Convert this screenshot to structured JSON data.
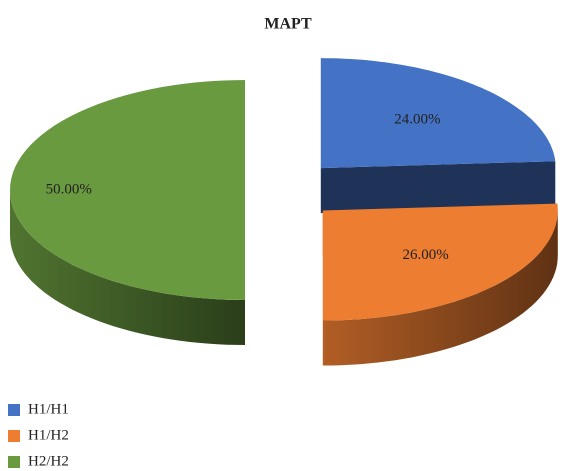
{
  "chart_data": {
    "type": "pie3d",
    "title": "МАРТ",
    "categories": [
      "H1/H1",
      "H1/H2",
      "H2/H2"
    ],
    "values": [
      24,
      26,
      50
    ],
    "value_labels": [
      "24.00%",
      "26.00%",
      "50.00%"
    ],
    "colors": [
      "#4472c4",
      "#ed7d31",
      "#6a9a40"
    ],
    "legend": "bottom-left"
  }
}
